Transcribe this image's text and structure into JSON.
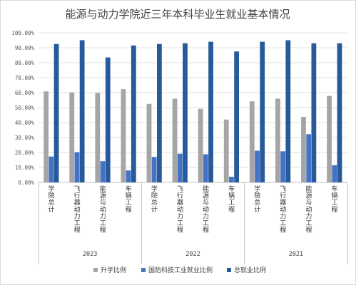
{
  "chart_data": {
    "type": "bar",
    "title": "能源与动力学院近三年本科毕业生就业基本情况",
    "ylim": [
      0,
      100
    ],
    "yticks": [
      "0.00%",
      "10.00%",
      "20.00%",
      "30.00%",
      "40.00%",
      "50.00%",
      "60.00%",
      "70.00%",
      "80.00%",
      "90.00%",
      "100.00%"
    ],
    "groups": [
      "2023",
      "2022",
      "2021"
    ],
    "categories": [
      "学院总计",
      "飞行器动力工程",
      "能源与动力工程",
      "车辆工程"
    ],
    "series": [
      {
        "name": "升学比例",
        "color": "#a5a5a5",
        "values": [
          [
            60.8,
            60.1,
            59.8,
            62.3
          ],
          [
            52.5,
            56.0,
            49.2,
            42.0
          ],
          [
            54.2,
            56.0,
            43.8,
            57.8
          ]
        ]
      },
      {
        "name": "国防科技工业就业比例",
        "color": "#4472c4",
        "values": [
          [
            17.3,
            20.2,
            14.2,
            8.0
          ],
          [
            17.0,
            19.2,
            18.8,
            3.8
          ],
          [
            21.2,
            20.8,
            32.2,
            11.5
          ]
        ]
      },
      {
        "name": "总就业比例",
        "color": "#265a9a",
        "values": [
          [
            92.5,
            95.0,
            83.5,
            91.5
          ],
          [
            92.5,
            93.0,
            94.0,
            87.5
          ],
          [
            94.0,
            95.0,
            93.0,
            93.0
          ]
        ]
      }
    ],
    "legend_position": "bottom",
    "grid": true
  }
}
